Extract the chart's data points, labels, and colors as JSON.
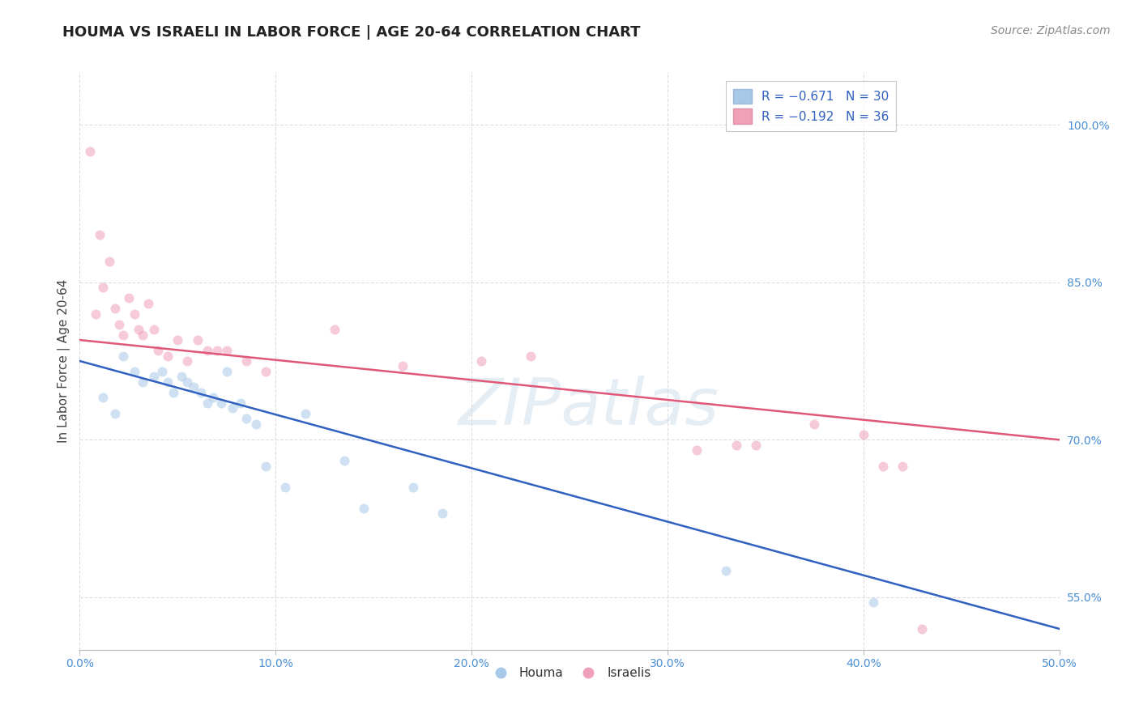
{
  "title": "HOUMA VS ISRAELI IN LABOR FORCE | AGE 20-64 CORRELATION CHART",
  "source": "Source: ZipAtlas.com",
  "ylabel": "In Labor Force | Age 20-64",
  "xlim": [
    0.0,
    50.0
  ],
  "ylim": [
    50.0,
    105.0
  ],
  "xticks": [
    0.0,
    10.0,
    20.0,
    30.0,
    40.0,
    50.0
  ],
  "yticks": [
    55.0,
    70.0,
    85.0,
    100.0
  ],
  "xtick_labels": [
    "0.0%",
    "10.0%",
    "20.0%",
    "30.0%",
    "40.0%",
    "50.0%"
  ],
  "ytick_labels": [
    "55.0%",
    "70.0%",
    "85.0%",
    "100.0%"
  ],
  "houma_color": "#a8c8e8",
  "israeli_color": "#f0a0b8",
  "houma_line_color": "#3060c0",
  "israeli_line_color": "#e05878",
  "background_color": "#ffffff",
  "grid_color": "#dddddd",
  "watermark_text": "ZIPatlas",
  "houma_x": [
    1.2,
    1.8,
    2.2,
    2.8,
    3.2,
    3.8,
    4.2,
    4.5,
    4.8,
    5.2,
    5.5,
    5.8,
    6.2,
    6.5,
    6.8,
    7.2,
    7.5,
    7.8,
    8.2,
    8.5,
    9.0,
    9.5,
    10.5,
    11.5,
    13.5,
    14.5,
    17.0,
    18.5,
    33.0,
    40.5
  ],
  "houma_y": [
    74.0,
    72.5,
    78.0,
    76.5,
    75.5,
    76.0,
    76.5,
    75.5,
    74.5,
    76.0,
    75.5,
    75.0,
    74.5,
    73.5,
    74.0,
    73.5,
    76.5,
    73.0,
    73.5,
    72.0,
    71.5,
    67.5,
    65.5,
    72.5,
    68.0,
    63.5,
    65.5,
    63.0,
    57.5,
    54.5
  ],
  "israeli_x": [
    0.5,
    0.8,
    1.0,
    1.2,
    1.5,
    1.8,
    2.0,
    2.2,
    2.5,
    2.8,
    3.0,
    3.2,
    3.5,
    3.8,
    4.0,
    4.5,
    5.0,
    5.5,
    6.0,
    6.5,
    7.0,
    7.5,
    8.5,
    9.5,
    13.0,
    16.5,
    20.5,
    23.0,
    31.5,
    33.5,
    34.5,
    37.5,
    40.0,
    41.0,
    42.0,
    43.0
  ],
  "israeli_y": [
    97.5,
    82.0,
    89.5,
    84.5,
    87.0,
    82.5,
    81.0,
    80.0,
    83.5,
    82.0,
    80.5,
    80.0,
    83.0,
    80.5,
    78.5,
    78.0,
    79.5,
    77.5,
    79.5,
    78.5,
    78.5,
    78.5,
    77.5,
    76.5,
    80.5,
    77.0,
    77.5,
    78.0,
    69.0,
    69.5,
    69.5,
    71.5,
    70.5,
    67.5,
    67.5,
    52.0
  ],
  "houma_trendline_x": [
    0.0,
    50.0
  ],
  "houma_trendline_y": [
    77.5,
    52.0
  ],
  "israeli_trendline_x": [
    0.0,
    50.0
  ],
  "israeli_trendline_y": [
    79.5,
    70.0
  ],
  "title_fontsize": 13,
  "axis_label_fontsize": 11,
  "tick_fontsize": 10,
  "legend_fontsize": 11,
  "source_fontsize": 10,
  "marker_size": 75,
  "marker_alpha": 0.55,
  "line_width": 1.8
}
